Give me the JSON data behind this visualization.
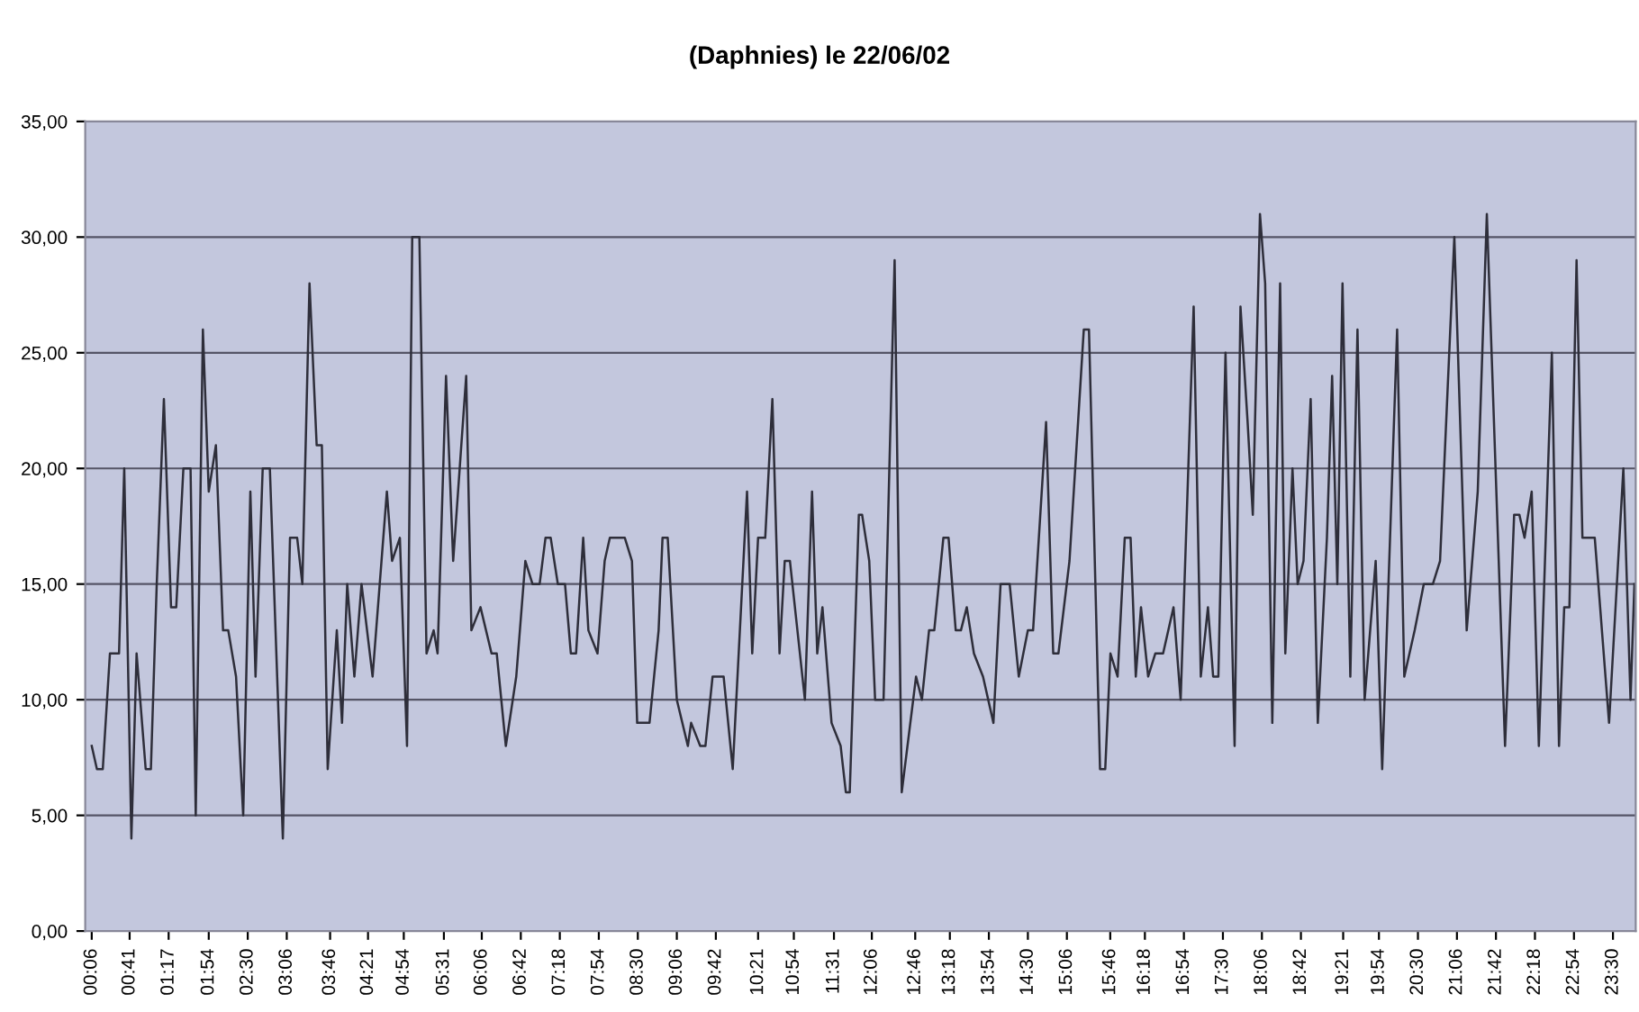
{
  "chart_data": {
    "type": "line",
    "title": "(Daphnies) le 22/06/02",
    "x": [
      0.1,
      0.18,
      0.27,
      0.38,
      0.52,
      0.6,
      0.71,
      0.79,
      0.93,
      1.01,
      1.1,
      1.21,
      1.32,
      1.4,
      1.51,
      1.62,
      1.7,
      1.81,
      1.9,
      2.01,
      2.12,
      2.2,
      2.32,
      2.43,
      2.54,
      2.62,
      2.73,
      2.84,
      3.04,
      3.15,
      3.26,
      3.34,
      3.45,
      3.56,
      3.64,
      3.73,
      3.87,
      3.95,
      4.03,
      4.14,
      4.25,
      4.42,
      4.64,
      4.72,
      4.84,
      4.95,
      5.03,
      5.14,
      5.25,
      5.36,
      5.42,
      5.55,
      5.66,
      5.86,
      5.94,
      6.08,
      6.25,
      6.33,
      6.47,
      6.63,
      6.77,
      6.88,
      6.99,
      7.08,
      7.16,
      7.27,
      7.38,
      7.47,
      7.55,
      7.66,
      7.74,
      7.88,
      7.99,
      8.07,
      8.3,
      8.41,
      8.49,
      8.68,
      8.82,
      8.88,
      8.96,
      9.1,
      9.27,
      9.32,
      9.46,
      9.54,
      9.65,
      9.82,
      9.96,
      10.18,
      10.26,
      10.35,
      10.46,
      10.57,
      10.68,
      10.76,
      10.84,
      11.07,
      11.18,
      11.26,
      11.34,
      11.48,
      11.62,
      11.7,
      11.76,
      11.9,
      11.95,
      12.06,
      12.15,
      12.28,
      12.45,
      12.56,
      12.78,
      12.87,
      12.98,
      13.06,
      13.2,
      13.28,
      13.39,
      13.47,
      13.56,
      13.67,
      13.81,
      13.97,
      14.08,
      14.22,
      14.36,
      14.5,
      14.58,
      14.78,
      14.89,
      14.97,
      15.14,
      15.36,
      15.44,
      15.61,
      15.69,
      15.77,
      15.88,
      15.99,
      16.08,
      16.16,
      16.24,
      16.35,
      16.46,
      16.58,
      16.74,
      16.85,
      17.05,
      17.16,
      17.27,
      17.35,
      17.43,
      17.54,
      17.68,
      17.77,
      17.88,
      17.96,
      18.07,
      18.15,
      18.26,
      18.38,
      18.46,
      18.57,
      18.65,
      18.74,
      18.85,
      18.96,
      19.1,
      19.18,
      19.26,
      19.34,
      19.46,
      19.57,
      19.68,
      19.85,
      19.95,
      20.18,
      20.29,
      20.45,
      20.59,
      20.73,
      20.84,
      21.06,
      21.25,
      21.42,
      21.56,
      21.84,
      21.98,
      22.06,
      22.14,
      22.25,
      22.36,
      22.56,
      22.67,
      22.75,
      22.83,
      22.94,
      23.03,
      23.22,
      23.44,
      23.66,
      23.77,
      23.83
    ],
    "series": [
      {
        "color": "#2e2e3a",
        "values": [
          8,
          7,
          7,
          12,
          12,
          20,
          4,
          12,
          7,
          7,
          15,
          23,
          14,
          14,
          20,
          20,
          5,
          26,
          19,
          21,
          13,
          13,
          11,
          5,
          19,
          11,
          20,
          20,
          4,
          17,
          17,
          15,
          28,
          21,
          21,
          7,
          13,
          9,
          15,
          11,
          15,
          11,
          19,
          16,
          17,
          8,
          30,
          30,
          12,
          13,
          12,
          24,
          16,
          24,
          13,
          14,
          12,
          12,
          8,
          11,
          16,
          15,
          15,
          17,
          17,
          15,
          15,
          12,
          12,
          17,
          13,
          12,
          16,
          17,
          17,
          16,
          9,
          9,
          13,
          17,
          17,
          10,
          8,
          9,
          8,
          8,
          11,
          11,
          7,
          19,
          12,
          17,
          17,
          23,
          12,
          16,
          16,
          10,
          19,
          12,
          14,
          9,
          8,
          6,
          6,
          18,
          18,
          16,
          10,
          10,
          29,
          6,
          11,
          10,
          13,
          13,
          17,
          17,
          13,
          13,
          14,
          12,
          11,
          9,
          15,
          15,
          11,
          13,
          13,
          22,
          12,
          12,
          16,
          26,
          26,
          7,
          7,
          12,
          11,
          17,
          17,
          11,
          14,
          11,
          12,
          12,
          14,
          10,
          27,
          11,
          14,
          11,
          11,
          25,
          8,
          27,
          22,
          18,
          31,
          28,
          9,
          28,
          12,
          20,
          15,
          16,
          23,
          9,
          17,
          24,
          15,
          28,
          11,
          26,
          10,
          16,
          7,
          26,
          11,
          13,
          15,
          15,
          16,
          30,
          13,
          19,
          31,
          8,
          18,
          18,
          17,
          19,
          8,
          25,
          8,
          14,
          14,
          29,
          17,
          17,
          9,
          20,
          10,
          15
        ]
      }
    ],
    "xlim": [
      0,
      23.85
    ],
    "xticks": [
      {
        "value": 0.1,
        "label": "00:06"
      },
      {
        "value": 0.683,
        "label": "00:41"
      },
      {
        "value": 1.283,
        "label": "01:17"
      },
      {
        "value": 1.9,
        "label": "01:54"
      },
      {
        "value": 2.5,
        "label": "02:30"
      },
      {
        "value": 3.1,
        "label": "03:06"
      },
      {
        "value": 3.767,
        "label": "03:46"
      },
      {
        "value": 4.35,
        "label": "04:21"
      },
      {
        "value": 4.9,
        "label": "04:54"
      },
      {
        "value": 5.517,
        "label": "05:31"
      },
      {
        "value": 6.1,
        "label": "06:06"
      },
      {
        "value": 6.7,
        "label": "06:42"
      },
      {
        "value": 7.3,
        "label": "07:18"
      },
      {
        "value": 7.9,
        "label": "07:54"
      },
      {
        "value": 8.5,
        "label": "08:30"
      },
      {
        "value": 9.1,
        "label": "09:06"
      },
      {
        "value": 9.7,
        "label": "09:42"
      },
      {
        "value": 10.35,
        "label": "10:21"
      },
      {
        "value": 10.9,
        "label": "10:54"
      },
      {
        "value": 11.517,
        "label": "11:31"
      },
      {
        "value": 12.1,
        "label": "12:06"
      },
      {
        "value": 12.767,
        "label": "12:46"
      },
      {
        "value": 13.3,
        "label": "13:18"
      },
      {
        "value": 13.9,
        "label": "13:54"
      },
      {
        "value": 14.5,
        "label": "14:30"
      },
      {
        "value": 15.1,
        "label": "15:06"
      },
      {
        "value": 15.767,
        "label": "15:46"
      },
      {
        "value": 16.3,
        "label": "16:18"
      },
      {
        "value": 16.9,
        "label": "16:54"
      },
      {
        "value": 17.5,
        "label": "17:30"
      },
      {
        "value": 18.1,
        "label": "18:06"
      },
      {
        "value": 18.7,
        "label": "18:42"
      },
      {
        "value": 19.35,
        "label": "19:21"
      },
      {
        "value": 19.9,
        "label": "19:54"
      },
      {
        "value": 20.5,
        "label": "20:30"
      },
      {
        "value": 21.1,
        "label": "21:06"
      },
      {
        "value": 21.7,
        "label": "21:42"
      },
      {
        "value": 22.3,
        "label": "22:18"
      },
      {
        "value": 22.9,
        "label": "22:54"
      },
      {
        "value": 23.5,
        "label": "23:30"
      }
    ],
    "ylim": [
      0,
      35
    ],
    "yticks": [
      {
        "value": 0,
        "label": "0,00"
      },
      {
        "value": 5,
        "label": "5,00"
      },
      {
        "value": 10,
        "label": "10,00"
      },
      {
        "value": 15,
        "label": "15,00"
      },
      {
        "value": 20,
        "label": "20,00"
      },
      {
        "value": 25,
        "label": "25,00"
      },
      {
        "value": 30,
        "label": "30,00"
      },
      {
        "value": 35,
        "label": "35,00"
      }
    ],
    "grid": "y",
    "line_style": "solid"
  }
}
